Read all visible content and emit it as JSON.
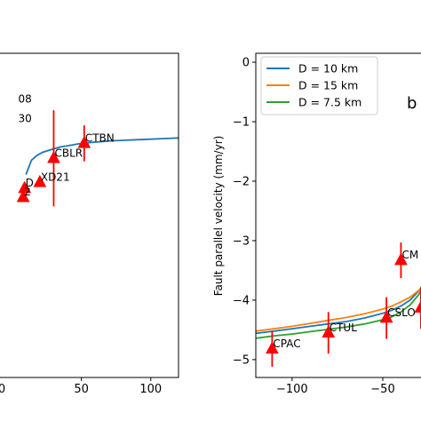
{
  "chart_data": [
    {
      "type": "line",
      "panel": "left",
      "xlabel": "",
      "ylabel": "",
      "xlim": [
        -10,
        120
      ],
      "ylim": [
        -5.2,
        0.2
      ],
      "x_ticks": [
        50,
        100
      ],
      "x_ticks_partial": [
        "0"
      ],
      "series": [
        {
          "color": "#1f77b4",
          "x": [
            10,
            14,
            18,
            22,
            26,
            30,
            35,
            40,
            50,
            60,
            70,
            80,
            90,
            100,
            110,
            120
          ],
          "values": [
            -1.82,
            -1.58,
            -1.5,
            -1.45,
            -1.42,
            -1.39,
            -1.36,
            -1.34,
            -1.3,
            -1.28,
            -1.26,
            -1.25,
            -1.24,
            -1.23,
            -1.22,
            -1.21
          ]
        }
      ],
      "stations": [
        {
          "label": "CTBN",
          "x": 52,
          "y": -1.3,
          "err": 0.3
        },
        {
          "label": "CBLR",
          "x": 30,
          "y": -1.55,
          "err": 0.8
        },
        {
          "label": "XD21",
          "x": 20,
          "y": -1.95,
          "err": 0
        },
        {
          "label": "D",
          "x": 9,
          "y": -2.05,
          "err": 0
        },
        {
          "label": "2",
          "x": 8,
          "y": -2.2,
          "err": 0
        }
      ],
      "partial_labels": [
        {
          "text": "08",
          "x": 7,
          "y": -0.62
        },
        {
          "text": "30",
          "x": 7,
          "y": -0.95
        }
      ]
    },
    {
      "type": "line",
      "panel": "right",
      "xlabel": "",
      "ylabel": "Fault parallel velocity (mm/yr)",
      "xlim": [
        -120,
        -27
      ],
      "ylim": [
        -5.3,
        0.15
      ],
      "x_ticks": [
        -100,
        -50
      ],
      "y_ticks": [
        0,
        -1,
        -2,
        -3,
        -4,
        -5
      ],
      "panel_letter": "b",
      "legend": {
        "position": "top-left",
        "entries": [
          "D = 10 km",
          "D = 15 km",
          "D = 7.5 km"
        ]
      },
      "series": [
        {
          "name": "D = 10 km",
          "color": "#1f77b4",
          "x": [
            -120,
            -110,
            -100,
            -90,
            -80,
            -70,
            -60,
            -50,
            -45,
            -40,
            -35,
            -30,
            -27
          ],
          "values": [
            -4.56,
            -4.52,
            -4.48,
            -4.44,
            -4.4,
            -4.36,
            -4.3,
            -4.22,
            -4.17,
            -4.1,
            -4.0,
            -3.84,
            -3.7
          ]
        },
        {
          "name": "D = 15 km",
          "color": "#ff7f0e",
          "x": [
            -120,
            -110,
            -100,
            -90,
            -80,
            -70,
            -60,
            -50,
            -45,
            -40,
            -35,
            -30,
            -27
          ],
          "values": [
            -4.52,
            -4.48,
            -4.44,
            -4.39,
            -4.34,
            -4.29,
            -4.23,
            -4.15,
            -4.1,
            -4.03,
            -3.95,
            -3.83,
            -3.72
          ]
        },
        {
          "name": "D = 7.5 km",
          "color": "#2ca02c",
          "x": [
            -120,
            -110,
            -100,
            -90,
            -80,
            -70,
            -60,
            -50,
            -45,
            -40,
            -35,
            -30,
            -27
          ],
          "values": [
            -4.64,
            -4.6,
            -4.57,
            -4.53,
            -4.49,
            -4.45,
            -4.4,
            -4.33,
            -4.28,
            -4.2,
            -4.08,
            -3.9,
            -3.74
          ]
        }
      ],
      "stations": [
        {
          "label": "CPAC",
          "x": -111,
          "y": -4.82,
          "err": 0.3
        },
        {
          "label": "CTUL",
          "x": -80,
          "y": -4.55,
          "err": 0.35
        },
        {
          "label": "CSLO",
          "x": -48,
          "y": -4.3,
          "err": 0.35
        },
        {
          "label": "CM",
          "x": -40,
          "y": -3.33,
          "err": 0.3
        },
        {
          "label": "",
          "x": -29,
          "y": -4.13,
          "err": 0.35
        }
      ]
    }
  ]
}
